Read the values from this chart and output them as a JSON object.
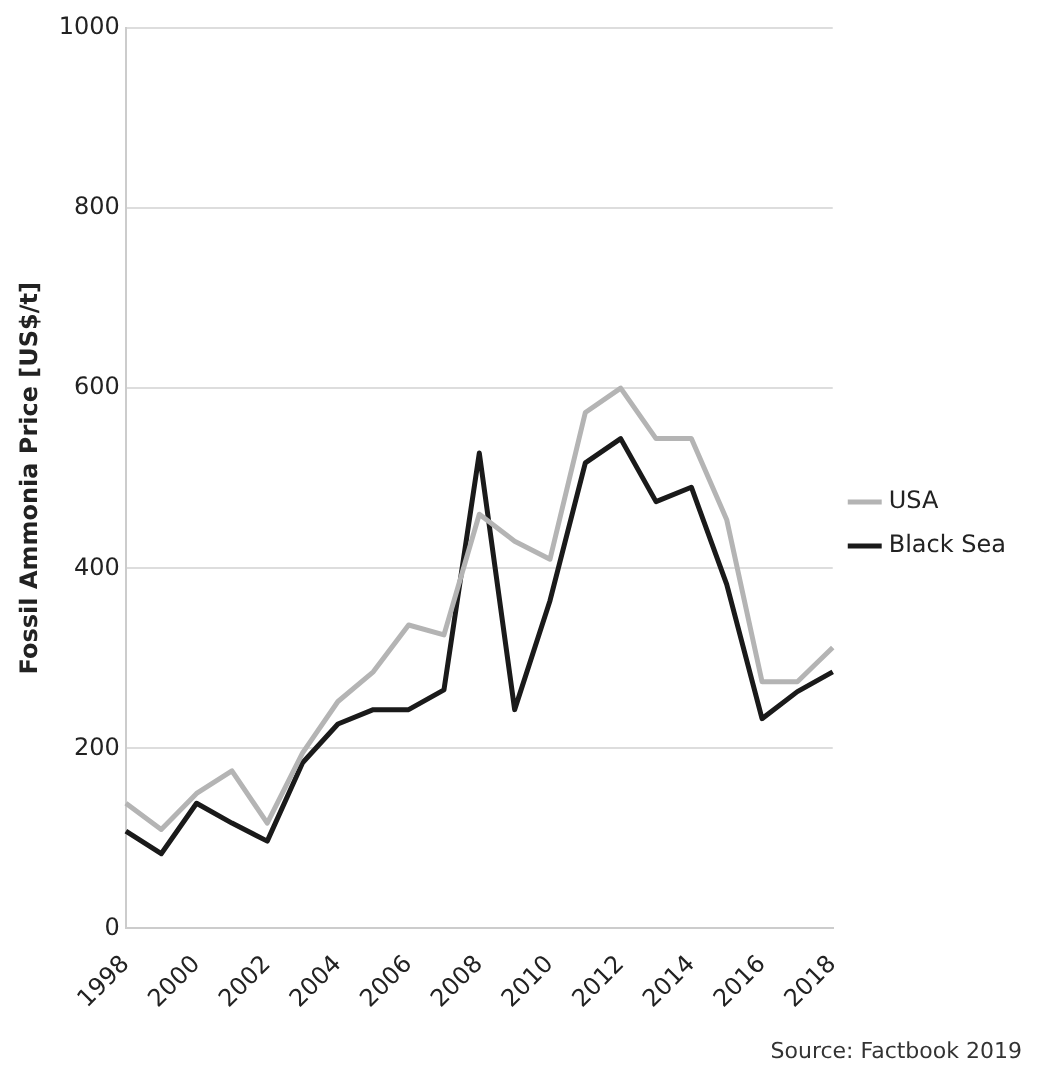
{
  "chart_data": {
    "type": "line",
    "ylabel": "Fossil Ammonia Price [US$/t]",
    "categories": [
      "1998",
      null,
      "2000",
      null,
      "2002",
      null,
      "2004",
      null,
      "2006",
      null,
      "2008",
      null,
      "2010",
      null,
      "2012",
      null,
      "2014",
      null,
      "2016",
      null,
      "2018"
    ],
    "series": [
      {
        "name": "USA",
        "color": "#b4b4b4",
        "values": [
          139,
          110,
          150,
          175,
          117,
          195,
          252,
          285,
          337,
          326,
          460,
          430,
          410,
          573,
          600,
          544,
          544,
          454,
          274,
          274,
          312
        ]
      },
      {
        "name": "Black Sea",
        "color": "#1a1a1a",
        "values": [
          108,
          83,
          139,
          117,
          97,
          184,
          227,
          243,
          243,
          265,
          528,
          243,
          364,
          517,
          544,
          474,
          490,
          382,
          233,
          263,
          285
        ]
      }
    ],
    "ylim": [
      0,
      1000
    ],
    "yticks": [
      0,
      200,
      400,
      600,
      800,
      1000
    ],
    "grid": "y",
    "legend": "right",
    "marker": "none",
    "line_style": "solid",
    "annotations": [
      "Source: Factbook 2019"
    ]
  }
}
